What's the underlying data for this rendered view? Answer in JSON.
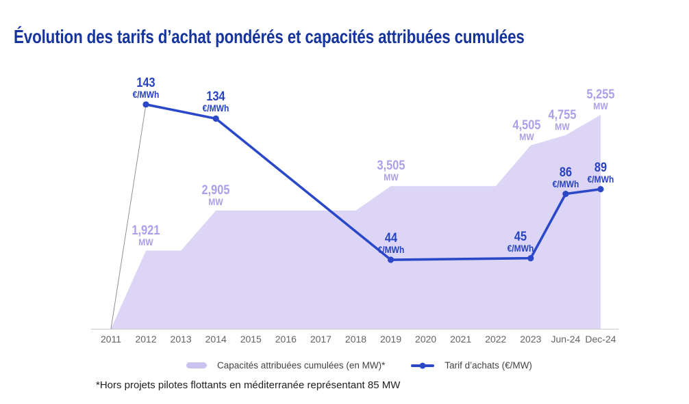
{
  "title": "Évolution des tarifs d’achat pondérés et capacités attribuées cumulées",
  "footnote": "*Hors projets pilotes flottants en méditerranée représentant 85 MW",
  "legend": {
    "area_label": "Capacités attribuées cumulées (en MW)*",
    "line_label": "Tarif d’achats (€/MW)"
  },
  "colors": {
    "title_blue": "#16349E",
    "line_blue": "#2B48C9",
    "line_label_blue": "#2743C0",
    "area_fill": "#DCD5F6",
    "legend_swatch": "#CCC2F0",
    "area_label_purple": "#AB9FE7",
    "axis_text": "#5F6368",
    "axis_line": "#C9C9C9",
    "connector_gray": "#8F8F8F",
    "legend_text": "#3F4347",
    "footnote_text": "#202124"
  },
  "chart_data": {
    "type": "area+line combo",
    "categories": [
      "2011",
      "2012",
      "2013",
      "2014",
      "2015",
      "2016",
      "2017",
      "2018",
      "2019",
      "2020",
      "2021",
      "2022",
      "2023",
      "Jun-24",
      "Dec-24"
    ],
    "y_axis_shown": false,
    "grid": false,
    "legend_position": "bottom",
    "series": [
      {
        "name": "Capacités attribuées cumulées (en MW)",
        "type": "area",
        "unit": "MW",
        "values": [
          0,
          1921,
          1921,
          2905,
          2905,
          2905,
          2905,
          2905,
          3505,
          3505,
          3505,
          3505,
          4505,
          4755,
          5255
        ],
        "ylim": [
          0,
          5255
        ],
        "labeled_points": [
          {
            "i": 1,
            "text": "1,921"
          },
          {
            "i": 3,
            "text": "2,905"
          },
          {
            "i": 8,
            "text": "3,505"
          },
          {
            "i": 12,
            "text": "4,505",
            "dx": -6
          },
          {
            "i": 13,
            "text": "4,755",
            "dx": -5
          },
          {
            "i": 14,
            "text": "5,255"
          }
        ]
      },
      {
        "name": "Tarif d’achats",
        "type": "line",
        "unit": "€/MWh",
        "values": [
          0,
          143,
          null,
          134,
          null,
          null,
          null,
          null,
          44,
          null,
          null,
          null,
          45,
          86,
          89
        ],
        "ylim": [
          0,
          143
        ],
        "labeled_points": [
          {
            "i": 1,
            "text": "143"
          },
          {
            "i": 3,
            "text": "134"
          },
          {
            "i": 8,
            "text": "44"
          },
          {
            "i": 12,
            "text": "45",
            "dx": -15
          },
          {
            "i": 13,
            "text": "86"
          },
          {
            "i": 14,
            "text": "89"
          }
        ]
      }
    ]
  }
}
